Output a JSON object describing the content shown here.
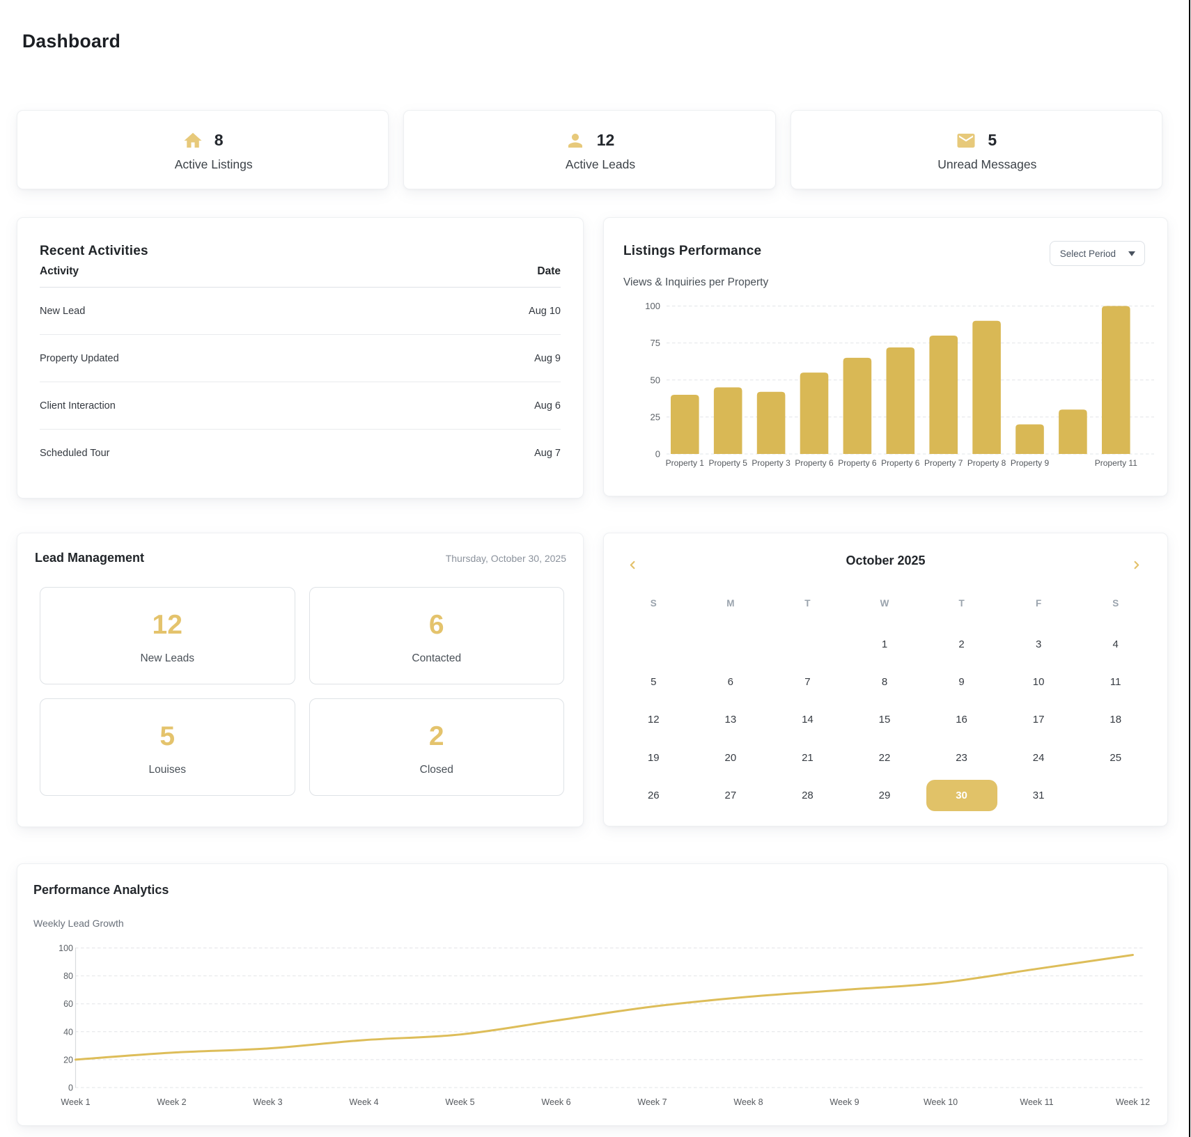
{
  "page": {
    "title": "Dashboard"
  },
  "colors": {
    "gold_icon": "#e7c97a",
    "gold_number": "#e4c36c",
    "gold_bar": "#d9b855",
    "gold_line": "#ddbd59",
    "gold_selected_day": "#e1c268",
    "text_dark": "#212529",
    "text_gray": "#6b7280"
  },
  "stats": [
    {
      "icon": "home-icon",
      "value": "8",
      "label": "Active Listings"
    },
    {
      "icon": "person-icon",
      "value": "12",
      "label": "Active Leads"
    },
    {
      "icon": "mail-icon",
      "value": "5",
      "label": "Unread Messages"
    }
  ],
  "recent_activities": {
    "title": "Recent Activities",
    "columns": [
      "Activity",
      "Date"
    ],
    "rows": [
      [
        "New Lead",
        "Aug 10"
      ],
      [
        "Property Updated",
        "Aug 9"
      ],
      [
        "Client Interaction",
        "Aug 6"
      ],
      [
        "Scheduled Tour",
        "Aug 7"
      ]
    ]
  },
  "listings_performance": {
    "title": "Listings Performance",
    "period_button_label": "Select Period",
    "subtitle": "Views & Inquiries per Property"
  },
  "lead_management": {
    "title": "Lead Management",
    "date": "Thursday, October 30, 2025",
    "boxes": [
      {
        "value": "12",
        "label": "New Leads"
      },
      {
        "value": "6",
        "label": "Contacted"
      },
      {
        "value": "5",
        "label": "Louises"
      },
      {
        "value": "2",
        "label": "Closed"
      }
    ]
  },
  "calendar": {
    "title": "October 2025",
    "weekdays": [
      "S",
      "M",
      "T",
      "W",
      "T",
      "F",
      "S"
    ],
    "weeks": [
      [
        "",
        "",
        "",
        "1",
        "2",
        "3",
        "4"
      ],
      [
        "5",
        "6",
        "7",
        "8",
        "9",
        "10",
        "11"
      ],
      [
        "12",
        "13",
        "14",
        "15",
        "16",
        "17",
        "18"
      ],
      [
        "19",
        "20",
        "21",
        "22",
        "23",
        "24",
        "25"
      ],
      [
        "26",
        "27",
        "28",
        "29",
        "30",
        "31",
        ""
      ]
    ],
    "selected_day": "30"
  },
  "performance_analytics": {
    "title": "Performance Analytics",
    "subtitle": "Weekly Lead Growth"
  },
  "chart_data": [
    {
      "id": "listings_bar",
      "type": "bar",
      "title": "Views & Inquiries per Property",
      "categories": [
        "Property 1",
        "Property 5",
        "Property 3",
        "Property 6",
        "Property 6",
        "Property 6",
        "Property 7",
        "Property 8",
        "Property 9",
        "",
        "Property 11"
      ],
      "values": [
        40,
        45,
        42,
        55,
        65,
        72,
        80,
        90,
        20,
        30,
        100
      ],
      "xlabel": "",
      "ylabel": "",
      "ylim": [
        0,
        100
      ],
      "yticks": [
        0,
        25,
        50,
        75,
        100
      ],
      "grid": "dashed",
      "legend": "none",
      "bar_color": "#d9b855"
    },
    {
      "id": "weekly_line",
      "type": "line",
      "title": "Weekly Lead Growth",
      "categories": [
        "Week 1",
        "Week 2",
        "Week 3",
        "Week 4",
        "Week 5",
        "Week 6",
        "Week 7",
        "Week 8",
        "Week 9",
        "Week 10",
        "Week 11",
        "Week 12"
      ],
      "values": [
        20,
        25,
        28,
        34,
        38,
        48,
        58,
        65,
        70,
        75,
        85,
        95
      ],
      "xlabel": "",
      "ylabel": "",
      "ylim": [
        0,
        100
      ],
      "yticks": [
        0,
        20,
        40,
        60,
        80,
        100
      ],
      "grid": "dashed",
      "legend": "none",
      "line_color": "#ddbd59"
    }
  ]
}
